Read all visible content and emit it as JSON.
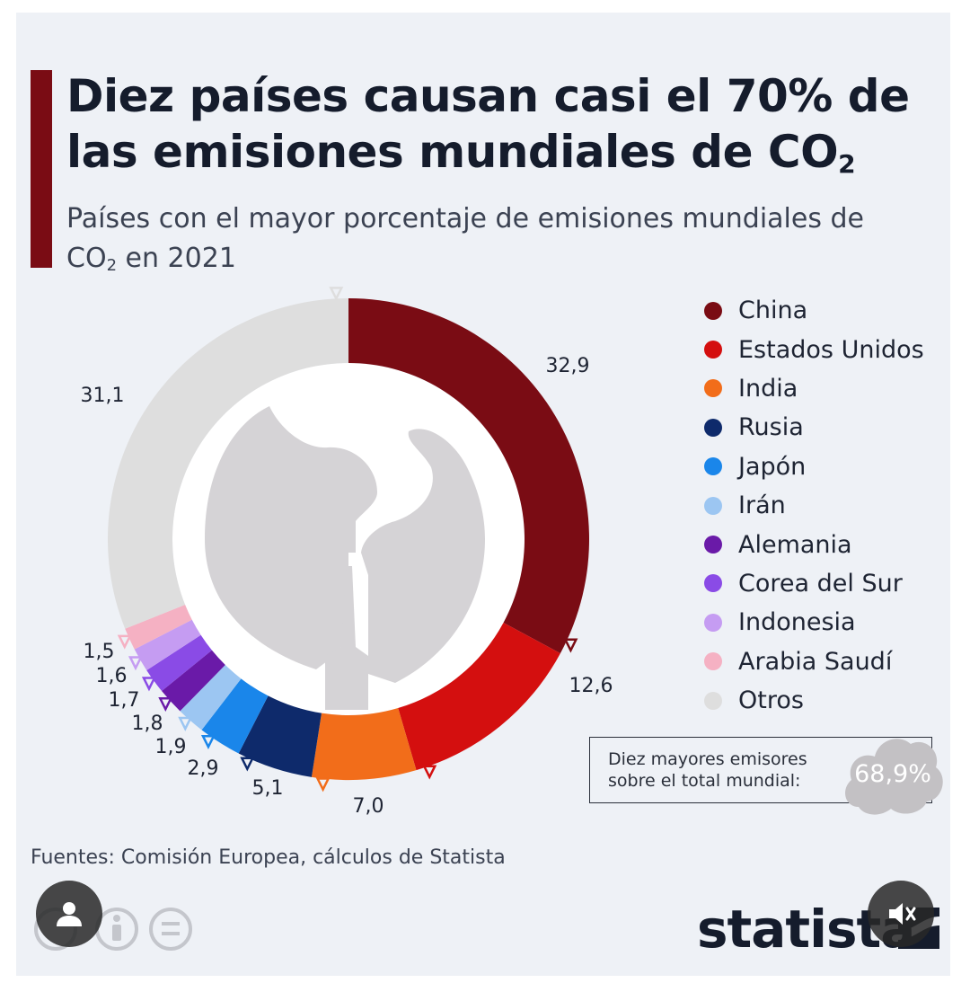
{
  "title": {
    "main": "Diez países causan casi el 70% de las emisiones mundiales de CO",
    "sub": "2"
  },
  "subtitle": {
    "main": "Países con el mayor porcentaje de emisiones mundiales de CO",
    "sub": "2",
    "tail": " en 2021"
  },
  "chart_data": {
    "type": "pie",
    "variant": "donut",
    "unit": "%",
    "categories": [
      "China",
      "Estados Unidos",
      "India",
      "Rusia",
      "Japón",
      "Irán",
      "Alemania",
      "Corea del Sur",
      "Indonesia",
      "Arabia Saudí",
      "Otros"
    ],
    "values": [
      32.9,
      12.6,
      7.0,
      5.1,
      2.9,
      1.9,
      1.8,
      1.7,
      1.6,
      1.5,
      31.1
    ],
    "value_labels": [
      "32,9",
      "12,6",
      "7,0",
      "5,1",
      "2,9",
      "1,9",
      "1,8",
      "1,7",
      "1,6",
      "1,5",
      "31,1"
    ],
    "colors": [
      "#7a0c14",
      "#d40f0f",
      "#f26d1a",
      "#0e2a6b",
      "#1a86ea",
      "#9cc6f2",
      "#6a1aa8",
      "#8a4be6",
      "#c59cf2",
      "#f5b1c3",
      "#dedede"
    ],
    "legend_position": "right"
  },
  "legend": {
    "items": [
      {
        "label": "China",
        "color": "#7a0c14"
      },
      {
        "label": "Estados Unidos",
        "color": "#d40f0f"
      },
      {
        "label": "India",
        "color": "#f26d1a"
      },
      {
        "label": "Rusia",
        "color": "#0e2a6b"
      },
      {
        "label": "Japón",
        "color": "#1a86ea"
      },
      {
        "label": "Irán",
        "color": "#9cc6f2"
      },
      {
        "label": "Alemania",
        "color": "#6a1aa8"
      },
      {
        "label": "Corea del Sur",
        "color": "#8a4be6"
      },
      {
        "label": "Indonesia",
        "color": "#c59cf2"
      },
      {
        "label": "Arabia Saudí",
        "color": "#f5b1c3"
      },
      {
        "label": "Otros",
        "color": "#dedede"
      }
    ]
  },
  "total": {
    "line1": "Diez mayores emisores",
    "line2": "sobre el total mundial:",
    "value": "68,9%"
  },
  "source": "Fuentes: Comisión Europea, cálculos de Statista",
  "brand": "statista",
  "icons": {
    "cc": "cc-icon",
    "attribution": "attribution-icon",
    "no_derivs": "no-derivatives-icon",
    "profile": "profile-icon",
    "mute": "speaker-muted-icon"
  }
}
